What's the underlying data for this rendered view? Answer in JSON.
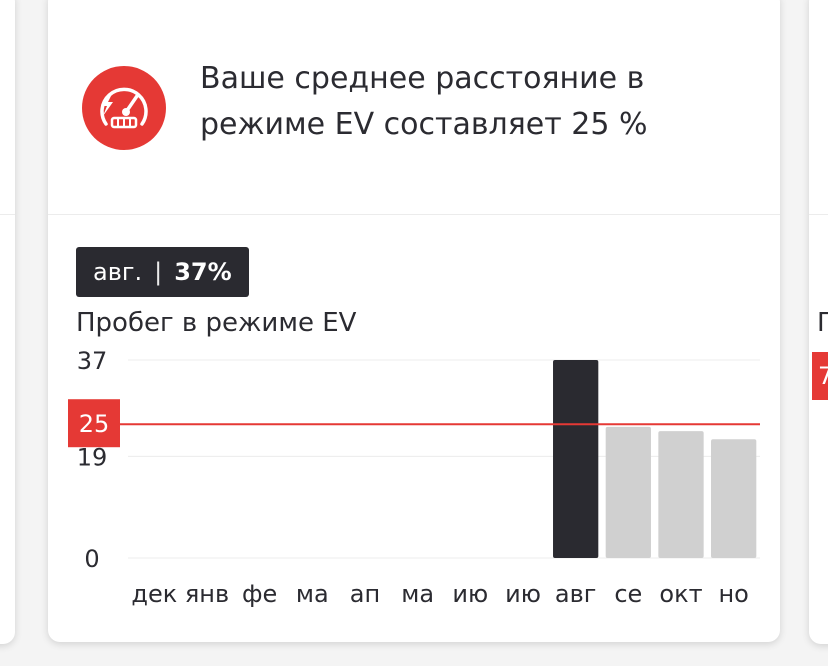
{
  "card": {
    "message": "Ваше среднее расстояние в режиме EV составляет 25 %",
    "icon": "ev-gauge-icon",
    "accent_color": "#e53935"
  },
  "selection": {
    "month": "авг.",
    "separator": "|",
    "value": "37%"
  },
  "right_card": {
    "label_fragment": "П",
    "badge_fragment": "7"
  },
  "chart_data": {
    "type": "bar",
    "title": "Пробег в режиме EV",
    "categories": [
      "дек",
      "янв",
      "фе",
      "ма",
      "ап",
      "ма",
      "ию",
      "ию",
      "авг",
      "се",
      "окт",
      "но"
    ],
    "values": [
      0,
      0,
      0,
      0,
      0,
      0,
      0,
      0,
      37,
      24.5,
      23.7,
      22.2
    ],
    "highlighted_index": 8,
    "y_ticks": [
      0,
      19,
      37
    ],
    "ylim": [
      0,
      37
    ],
    "average": 25,
    "average_label": "25",
    "grid": true,
    "colors": {
      "highlight": "#2a2a30",
      "bar": "#d0d0d0",
      "average_line": "#e53935",
      "grid": "#ececec"
    }
  }
}
